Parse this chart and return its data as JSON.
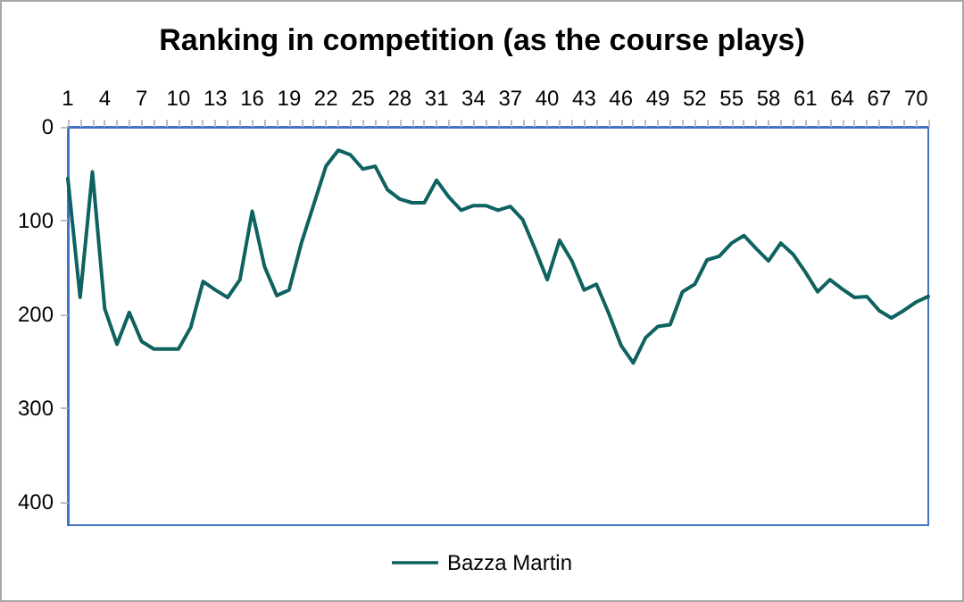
{
  "chart_data": {
    "type": "line",
    "title": "Ranking in competition (as the course plays)",
    "categories": [
      "1",
      null,
      null,
      "4",
      null,
      null,
      "7",
      null,
      null,
      "10",
      null,
      null,
      "13",
      null,
      null,
      "16",
      null,
      null,
      "19",
      null,
      null,
      "22",
      null,
      null,
      "25",
      null,
      null,
      "28",
      null,
      null,
      "31",
      null,
      null,
      "34",
      null,
      null,
      "37",
      null,
      null,
      "40",
      null,
      null,
      "43",
      null,
      null,
      "46",
      null,
      null,
      "49",
      null,
      null,
      "52",
      null,
      null,
      "55",
      null,
      null,
      "58",
      null,
      null,
      "61",
      null,
      null,
      "64",
      null,
      null,
      "67",
      null,
      null,
      "70",
      null
    ],
    "series": [
      {
        "name": "Bazza Martin",
        "color": "#0e6260",
        "values": [
          55,
          182,
          48,
          194,
          232,
          198,
          229,
          237,
          237,
          237,
          214,
          165,
          174,
          182,
          163,
          90,
          149,
          180,
          174,
          124,
          83,
          42,
          25,
          30,
          45,
          42,
          67,
          77,
          81,
          81,
          57,
          75,
          89,
          84,
          84,
          89,
          85,
          99,
          130,
          163,
          121,
          143,
          174,
          168,
          199,
          233,
          252,
          225,
          213,
          211,
          176,
          168,
          142,
          138,
          124,
          116,
          130,
          143,
          124,
          136,
          155,
          176,
          163,
          173,
          182,
          181,
          196,
          204,
          196,
          187,
          181
        ]
      }
    ],
    "ylim": [
      425,
      0
    ],
    "yticks": [
      0,
      100,
      200,
      300,
      400
    ],
    "grid": false,
    "legend": "bottom",
    "marker": "none",
    "line_style": "solid"
  }
}
